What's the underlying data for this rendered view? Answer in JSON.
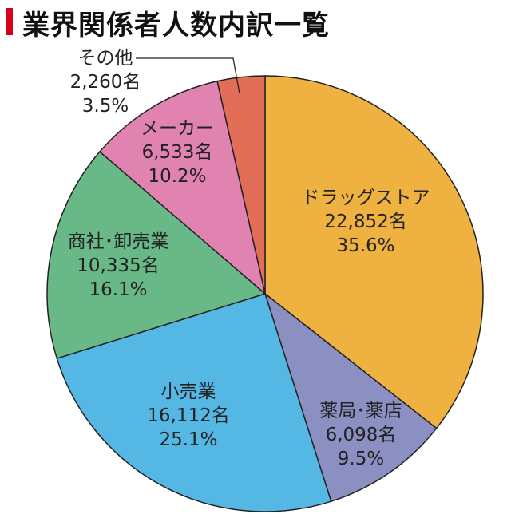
{
  "header": {
    "title": "業界関係者人数内訳一覧"
  },
  "chart_data": {
    "type": "pie",
    "title": "業界関係者人数内訳一覧",
    "start_angle_deg": 0,
    "direction": "clockwise",
    "slices": [
      {
        "name": "ドラッグストア",
        "count_text": "22,852名",
        "percent_text": "35.6%",
        "value": 22852,
        "percent": 35.6,
        "color": "#efb241"
      },
      {
        "name": "薬局･薬店",
        "count_text": "6,098名",
        "percent_text": "9.5%",
        "value": 6098,
        "percent": 9.5,
        "color": "#8b8fc1"
      },
      {
        "name": "小売業",
        "count_text": "16,112名",
        "percent_text": "25.1%",
        "value": 16112,
        "percent": 25.1,
        "color": "#55b7e3"
      },
      {
        "name": "商社･卸売業",
        "count_text": "10,335名",
        "percent_text": "16.1%",
        "value": 10335,
        "percent": 16.1,
        "color": "#68b987"
      },
      {
        "name": "メーカー",
        "count_text": "6,533名",
        "percent_text": "10.2%",
        "value": 6533,
        "percent": 10.2,
        "color": "#e083b1"
      },
      {
        "name": "その他",
        "count_text": "2,260名",
        "percent_text": "3.5%",
        "value": 2260,
        "percent": 3.5,
        "color": "#e26e58"
      }
    ],
    "legend": "none"
  }
}
